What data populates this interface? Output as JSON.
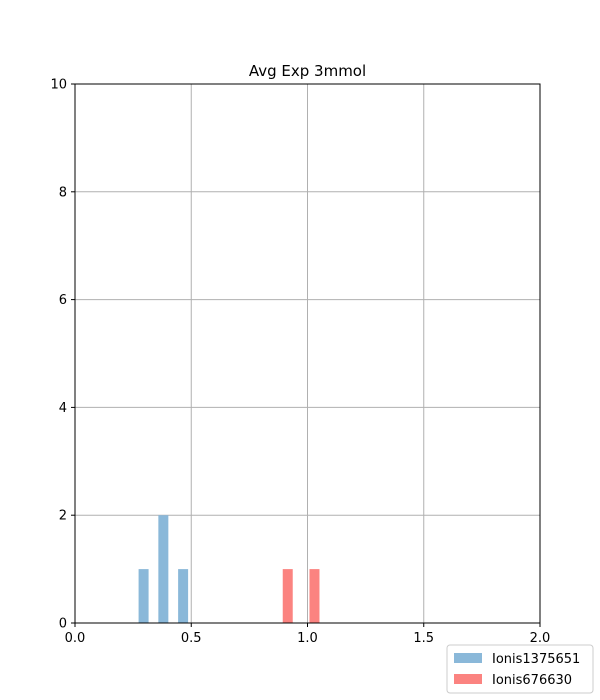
{
  "chart_data": {
    "type": "bar",
    "title": "Avg Exp 3mmol",
    "xlabel": "",
    "ylabel": "",
    "xlim": [
      0.0,
      2.0
    ],
    "ylim": [
      0,
      10
    ],
    "xticks": [
      "0.0",
      "0.5",
      "1.0",
      "1.5",
      "2.0"
    ],
    "yticks": [
      "0",
      "2",
      "4",
      "6",
      "8",
      "10"
    ],
    "grid": true,
    "legend_position": "bottom-right",
    "bin_width": 0.043,
    "series": [
      {
        "name": "Ionis1375651",
        "color": "#8ab8d9",
        "bins": [
          {
            "x": 0.295,
            "value": 1
          },
          {
            "x": 0.38,
            "value": 2
          },
          {
            "x": 0.465,
            "value": 1
          }
        ]
      },
      {
        "name": "Ionis676630",
        "color": "#fb8380",
        "bins": [
          {
            "x": 0.915,
            "value": 1
          },
          {
            "x": 1.03,
            "value": 1
          }
        ]
      }
    ]
  }
}
